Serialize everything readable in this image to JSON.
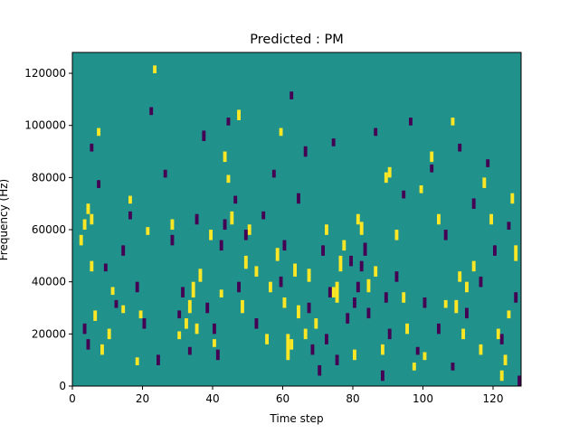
{
  "chart_data": {
    "type": "heatmap",
    "title": "Predicted : PM",
    "xlabel": "Time step",
    "ylabel": "Frequency (Hz)",
    "xlim": [
      0,
      128
    ],
    "ylim": [
      0,
      128000
    ],
    "x_ticks": [
      0,
      20,
      40,
      60,
      80,
      100,
      120
    ],
    "y_ticks": [
      0,
      20000,
      40000,
      60000,
      80000,
      100000,
      120000
    ],
    "x_tick_labels": [
      "0",
      "20",
      "40",
      "60",
      "80",
      "100",
      "120"
    ],
    "y_tick_labels": [
      "0",
      "20000",
      "40000",
      "60000",
      "80000",
      "100000",
      "120000"
    ],
    "grid": false,
    "colors": {
      "background_value": "#21918c",
      "high_value": "#fde725",
      "low_value": "#440154"
    },
    "n_time_steps": 128,
    "n_freq_bins": 128,
    "freq_bin_hz": 1000,
    "cells": {
      "high": [
        [
          2,
          54,
          58
        ],
        [
          3,
          60,
          64
        ],
        [
          4,
          66,
          70
        ],
        [
          5,
          44,
          48
        ],
        [
          5,
          62,
          66
        ],
        [
          6,
          25,
          29
        ],
        [
          7,
          96,
          99
        ],
        [
          8,
          12,
          16
        ],
        [
          10,
          18,
          22
        ],
        [
          11,
          35,
          38
        ],
        [
          14,
          28,
          31
        ],
        [
          16,
          70,
          73
        ],
        [
          18,
          8,
          11
        ],
        [
          19,
          26,
          29
        ],
        [
          21,
          58,
          61
        ],
        [
          23,
          120,
          123
        ],
        [
          28,
          60,
          64
        ],
        [
          30,
          18,
          21
        ],
        [
          32,
          22,
          26
        ],
        [
          33,
          28,
          33
        ],
        [
          34,
          34,
          40
        ],
        [
          35,
          20,
          24
        ],
        [
          36,
          40,
          45
        ],
        [
          39,
          56,
          60
        ],
        [
          40,
          15,
          18
        ],
        [
          42,
          34,
          37
        ],
        [
          43,
          86,
          90
        ],
        [
          44,
          78,
          81
        ],
        [
          45,
          62,
          67
        ],
        [
          47,
          102,
          106
        ],
        [
          48,
          28,
          33
        ],
        [
          49,
          45,
          50
        ],
        [
          50,
          58,
          62
        ],
        [
          52,
          42,
          46
        ],
        [
          55,
          16,
          20
        ],
        [
          56,
          36,
          40
        ],
        [
          58,
          48,
          53
        ],
        [
          59,
          96,
          99
        ],
        [
          60,
          30,
          34
        ],
        [
          61,
          10,
          20
        ],
        [
          62,
          14,
          18
        ],
        [
          63,
          42,
          47
        ],
        [
          64,
          26,
          31
        ],
        [
          66,
          18,
          22
        ],
        [
          67,
          40,
          45
        ],
        [
          69,
          22,
          26
        ],
        [
          72,
          58,
          62
        ],
        [
          74,
          34,
          38
        ],
        [
          75,
          32,
          40
        ],
        [
          76,
          44,
          50
        ],
        [
          77,
          52,
          56
        ],
        [
          80,
          10,
          14
        ],
        [
          81,
          62,
          66
        ],
        [
          82,
          58,
          63
        ],
        [
          84,
          36,
          41
        ],
        [
          86,
          42,
          46
        ],
        [
          88,
          12,
          16
        ],
        [
          89,
          78,
          82
        ],
        [
          90,
          80,
          84
        ],
        [
          92,
          56,
          60
        ],
        [
          94,
          32,
          36
        ],
        [
          95,
          20,
          24
        ],
        [
          97,
          6,
          9
        ],
        [
          99,
          74,
          77
        ],
        [
          100,
          10,
          13
        ],
        [
          102,
          86,
          90
        ],
        [
          104,
          62,
          66
        ],
        [
          106,
          30,
          33
        ],
        [
          108,
          100,
          103
        ],
        [
          109,
          28,
          33
        ],
        [
          110,
          40,
          44
        ],
        [
          111,
          18,
          22
        ],
        [
          112,
          36,
          40
        ],
        [
          114,
          44,
          48
        ],
        [
          116,
          12,
          16
        ],
        [
          117,
          76,
          80
        ],
        [
          119,
          62,
          66
        ],
        [
          121,
          18,
          22
        ],
        [
          122,
          2,
          6
        ],
        [
          123,
          8,
          12
        ],
        [
          124,
          26,
          29
        ],
        [
          125,
          70,
          74
        ],
        [
          126,
          48,
          54
        ],
        [
          128,
          30,
          34
        ],
        [
          128,
          58,
          62
        ]
      ],
      "low": [
        [
          3,
          20,
          24
        ],
        [
          4,
          14,
          18
        ],
        [
          5,
          90,
          93
        ],
        [
          7,
          76,
          79
        ],
        [
          9,
          44,
          47
        ],
        [
          12,
          30,
          33
        ],
        [
          14,
          50,
          54
        ],
        [
          16,
          64,
          67
        ],
        [
          18,
          36,
          40
        ],
        [
          20,
          22,
          26
        ],
        [
          22,
          104,
          107
        ],
        [
          24,
          8,
          12
        ],
        [
          26,
          80,
          83
        ],
        [
          28,
          54,
          58
        ],
        [
          30,
          26,
          29
        ],
        [
          31,
          34,
          38
        ],
        [
          33,
          12,
          15
        ],
        [
          35,
          62,
          66
        ],
        [
          37,
          94,
          98
        ],
        [
          38,
          28,
          32
        ],
        [
          40,
          20,
          24
        ],
        [
          41,
          10,
          14
        ],
        [
          42,
          52,
          56
        ],
        [
          43,
          60,
          64
        ],
        [
          44,
          100,
          103
        ],
        [
          46,
          70,
          73
        ],
        [
          47,
          36,
          40
        ],
        [
          49,
          56,
          60
        ],
        [
          52,
          22,
          26
        ],
        [
          54,
          64,
          67
        ],
        [
          57,
          80,
          83
        ],
        [
          59,
          38,
          42
        ],
        [
          60,
          52,
          56
        ],
        [
          62,
          110,
          113
        ],
        [
          64,
          70,
          74
        ],
        [
          66,
          88,
          92
        ],
        [
          67,
          28,
          32
        ],
        [
          68,
          12,
          16
        ],
        [
          70,
          4,
          8
        ],
        [
          71,
          50,
          54
        ],
        [
          72,
          16,
          20
        ],
        [
          73,
          34,
          38
        ],
        [
          74,
          92,
          95
        ],
        [
          75,
          8,
          12
        ],
        [
          78,
          24,
          28
        ],
        [
          79,
          46,
          50
        ],
        [
          80,
          30,
          34
        ],
        [
          81,
          36,
          40
        ],
        [
          82,
          44,
          48
        ],
        [
          83,
          50,
          55
        ],
        [
          84,
          26,
          30
        ],
        [
          86,
          96,
          99
        ],
        [
          88,
          2,
          6
        ],
        [
          89,
          32,
          36
        ],
        [
          90,
          18,
          22
        ],
        [
          92,
          40,
          44
        ],
        [
          94,
          72,
          75
        ],
        [
          96,
          100,
          103
        ],
        [
          98,
          12,
          15
        ],
        [
          100,
          30,
          34
        ],
        [
          102,
          82,
          85
        ],
        [
          104,
          20,
          24
        ],
        [
          106,
          56,
          60
        ],
        [
          108,
          6,
          9
        ],
        [
          110,
          90,
          93
        ],
        [
          112,
          26,
          30
        ],
        [
          114,
          68,
          72
        ],
        [
          116,
          38,
          42
        ],
        [
          118,
          84,
          87
        ],
        [
          120,
          50,
          54
        ],
        [
          122,
          16,
          20
        ],
        [
          124,
          60,
          63
        ],
        [
          126,
          32,
          36
        ],
        [
          127,
          0,
          4
        ]
      ]
    }
  }
}
